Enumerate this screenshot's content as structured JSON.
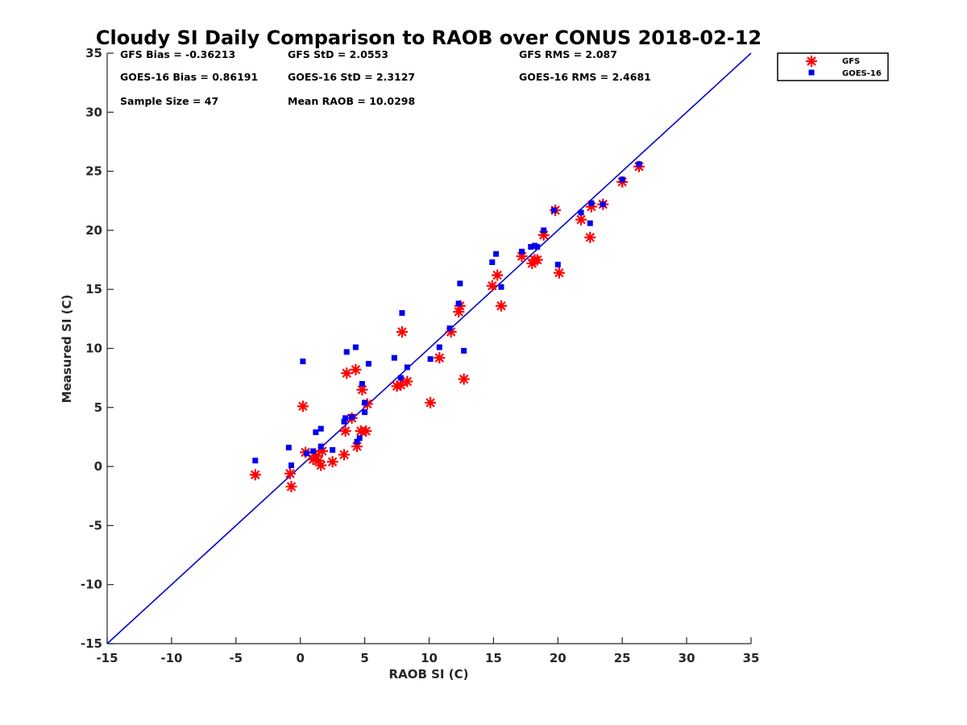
{
  "chart_data": {
    "type": "scatter",
    "title": "Cloudy SI Daily Comparison to RAOB over CONUS 2018-02-12",
    "xlabel": "RAOB SI (C)",
    "ylabel": "Measured SI (C)",
    "xlim": [
      -15,
      35
    ],
    "ylim": [
      -15,
      35
    ],
    "xticks": [
      -15,
      -10,
      -5,
      0,
      5,
      10,
      15,
      20,
      25,
      30,
      35
    ],
    "yticks": [
      -15,
      -10,
      -5,
      0,
      5,
      10,
      15,
      20,
      25,
      30,
      35
    ],
    "grid": false,
    "legend_position": "outside-top-right",
    "reference_line": {
      "from": [
        -15,
        -15
      ],
      "to": [
        35,
        35
      ],
      "color": "#0000cc"
    },
    "stats": {
      "gfs_bias": "GFS Bias = -0.36213",
      "gfs_std": "GFS StD = 2.0553",
      "gfs_rms": "GFS RMS = 2.087",
      "goes_bias": "GOES-16 Bias = 0.86191",
      "goes_std": "GOES-16 StD = 2.3127",
      "goes_rms": "GOES-16 RMS = 2.4681",
      "sample_size": "Sample Size = 47",
      "mean_raob": "Mean RAOB = 10.0298"
    },
    "series": [
      {
        "name": "GFS",
        "marker": "asterisk",
        "color": "#ff0000",
        "points": [
          [
            -3.5,
            -0.7
          ],
          [
            -0.8,
            -0.6
          ],
          [
            -0.7,
            -1.7
          ],
          [
            0.2,
            5.1
          ],
          [
            0.4,
            1.2
          ],
          [
            1.0,
            0.6
          ],
          [
            1.2,
            0.9
          ],
          [
            1.4,
            0.5
          ],
          [
            1.6,
            0.1
          ],
          [
            1.7,
            1.3
          ],
          [
            2.5,
            0.4
          ],
          [
            3.4,
            1.0
          ],
          [
            3.5,
            3.0
          ],
          [
            3.6,
            7.9
          ],
          [
            4.0,
            4.1
          ],
          [
            4.3,
            8.2
          ],
          [
            4.4,
            1.7
          ],
          [
            4.7,
            3.0
          ],
          [
            4.8,
            6.5
          ],
          [
            5.1,
            3.0
          ],
          [
            5.2,
            5.3
          ],
          [
            7.5,
            6.8
          ],
          [
            7.8,
            6.9
          ],
          [
            7.9,
            11.4
          ],
          [
            8.3,
            7.2
          ],
          [
            10.1,
            5.4
          ],
          [
            10.8,
            9.2
          ],
          [
            11.7,
            11.4
          ],
          [
            12.3,
            13.1
          ],
          [
            12.4,
            13.6
          ],
          [
            12.7,
            7.4
          ],
          [
            14.9,
            15.3
          ],
          [
            15.3,
            16.2
          ],
          [
            15.6,
            13.6
          ],
          [
            17.2,
            17.8
          ],
          [
            18.0,
            17.2
          ],
          [
            18.2,
            17.5
          ],
          [
            18.4,
            17.5
          ],
          [
            18.9,
            19.6
          ],
          [
            19.8,
            21.7
          ],
          [
            20.1,
            16.4
          ],
          [
            21.8,
            20.9
          ],
          [
            22.5,
            19.4
          ],
          [
            22.6,
            22.0
          ],
          [
            23.5,
            22.2
          ],
          [
            25.0,
            24.1
          ],
          [
            26.3,
            25.4
          ]
        ]
      },
      {
        "name": "GOES-16",
        "marker": "square",
        "color": "#0000ee",
        "points": [
          [
            -3.5,
            0.5
          ],
          [
            -0.9,
            1.6
          ],
          [
            -0.7,
            0.1
          ],
          [
            0.2,
            8.9
          ],
          [
            0.5,
            1.1
          ],
          [
            1.0,
            1.3
          ],
          [
            1.2,
            2.9
          ],
          [
            1.6,
            3.2
          ],
          [
            1.6,
            1.7
          ],
          [
            2.5,
            1.4
          ],
          [
            3.4,
            3.8
          ],
          [
            3.5,
            4.1
          ],
          [
            3.6,
            9.7
          ],
          [
            4.0,
            4.2
          ],
          [
            4.3,
            10.1
          ],
          [
            4.4,
            2.1
          ],
          [
            4.6,
            2.4
          ],
          [
            4.8,
            7.0
          ],
          [
            5.0,
            5.4
          ],
          [
            5.0,
            4.6
          ],
          [
            5.3,
            8.7
          ],
          [
            7.3,
            9.2
          ],
          [
            7.8,
            7.5
          ],
          [
            7.9,
            13.0
          ],
          [
            8.3,
            8.4
          ],
          [
            10.1,
            9.1
          ],
          [
            10.8,
            10.1
          ],
          [
            11.6,
            11.7
          ],
          [
            12.3,
            13.8
          ],
          [
            12.4,
            15.5
          ],
          [
            12.7,
            9.8
          ],
          [
            14.9,
            17.3
          ],
          [
            15.2,
            18.0
          ],
          [
            15.6,
            15.2
          ],
          [
            17.2,
            18.2
          ],
          [
            17.9,
            18.6
          ],
          [
            18.2,
            18.7
          ],
          [
            18.4,
            18.6
          ],
          [
            18.9,
            20.0
          ],
          [
            19.7,
            21.7
          ],
          [
            20.0,
            17.1
          ],
          [
            21.8,
            21.5
          ],
          [
            22.5,
            20.6
          ],
          [
            22.6,
            22.3
          ],
          [
            23.5,
            22.2
          ],
          [
            25.0,
            24.3
          ],
          [
            26.3,
            25.6
          ]
        ]
      }
    ]
  }
}
